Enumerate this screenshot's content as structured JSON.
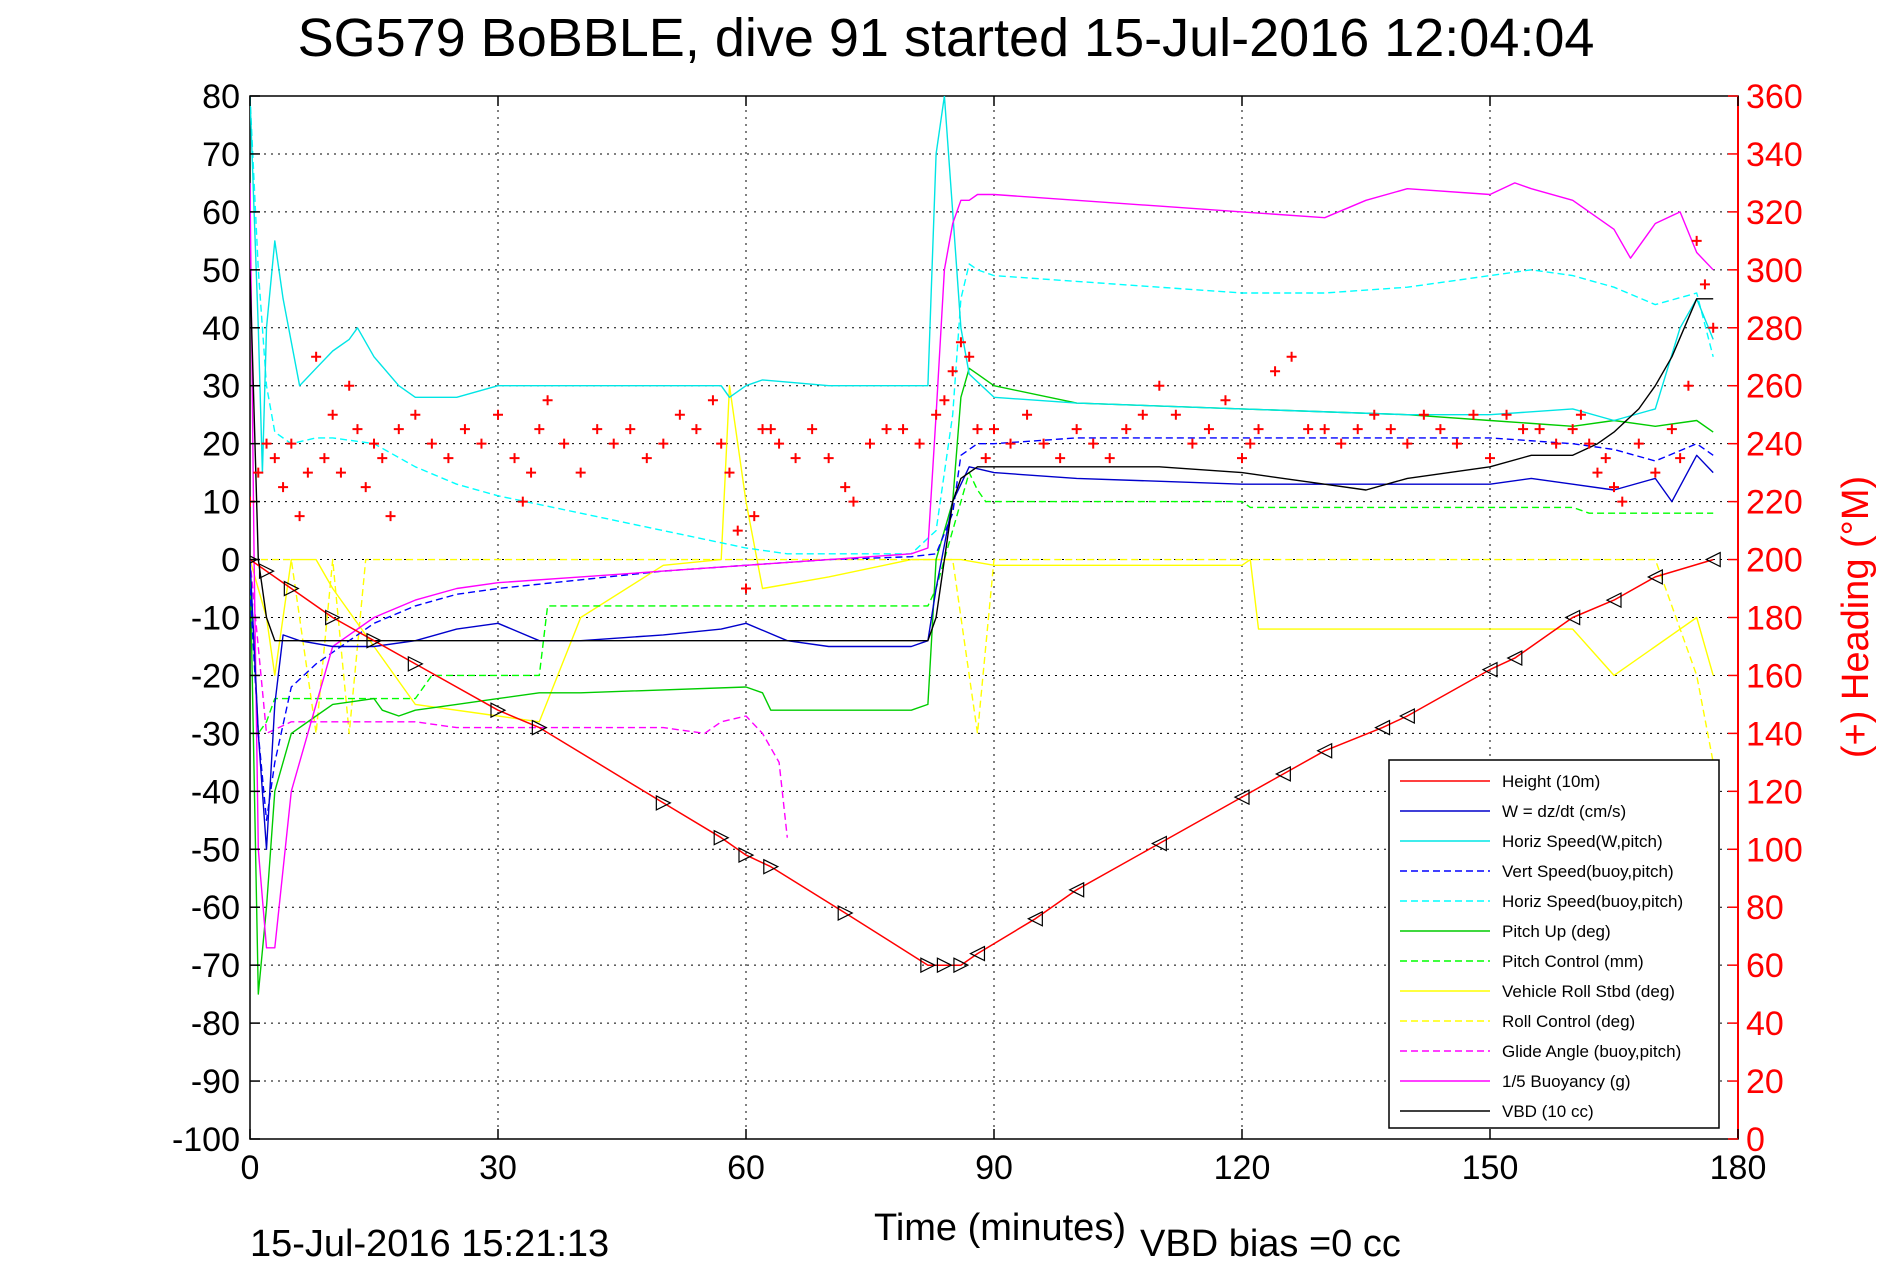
{
  "chart_data": {
    "type": "line",
    "title": "SG579 BoBBLE, dive 91 started 15-Jul-2016 12:04:04",
    "xlabel": "Time (minutes)",
    "ylabel_right": "(+) Heading (°M)",
    "xlim": [
      0,
      180
    ],
    "ylim": [
      -100,
      80
    ],
    "ylim_right": [
      0,
      360
    ],
    "x_ticks": [
      "0",
      "30",
      "60",
      "90",
      "120",
      "150",
      "180"
    ],
    "y_ticks": [
      "80",
      "70",
      "60",
      "50",
      "40",
      "30",
      "20",
      "10",
      "0",
      "-10",
      "-20",
      "-30",
      "-40",
      "-50",
      "-60",
      "-70",
      "-80",
      "-90",
      "-100"
    ],
    "y_ticks_right": [
      "360",
      "340",
      "320",
      "300",
      "280",
      "260",
      "240",
      "220",
      "200",
      "180",
      "160",
      "140",
      "120",
      "100",
      "80",
      "60",
      "40",
      "20",
      "0"
    ],
    "grid": true,
    "legend_position": "bottom-right",
    "footer_left": "15-Jul-2016 15:21:13",
    "footer_right": "VBD bias =0 cc",
    "colors": {
      "height": "#ff0000",
      "w": "#0000cc",
      "horiz_speed_w": "#00e5e5",
      "vert_speed_buoy": "#0000ff",
      "horiz_speed_buoy": "#00ffff",
      "pitch_up": "#00cc00",
      "pitch_control": "#00ff00",
      "roll": "#ffff00",
      "roll_control": "#ffff00",
      "glide_angle": "#ff00ff",
      "buoyancy": "#ff00ff",
      "vbd": "#000000",
      "heading": "#ff0000"
    },
    "series": [
      {
        "key": "height",
        "name": "Height (10m)",
        "style": "solid",
        "axis": "left",
        "x": [
          0,
          2,
          5,
          10,
          15,
          20,
          30,
          35,
          50,
          57,
          60,
          63,
          72,
          82,
          84,
          86,
          88,
          95,
          100,
          110,
          120,
          125,
          130,
          137,
          140,
          150,
          153,
          160,
          165,
          170,
          177
        ],
        "y": [
          0,
          -2,
          -5,
          -10,
          -14,
          -18,
          -26,
          -29,
          -42,
          -48,
          -51,
          -53,
          -61,
          -70,
          -70,
          -70,
          -68,
          -62,
          -57,
          -49,
          -41,
          -37,
          -33,
          -29,
          -27,
          -19,
          -17,
          -10,
          -7,
          -3,
          0
        ]
      },
      {
        "key": "w",
        "name": "W = dz/dt (cm/s)",
        "style": "solid",
        "axis": "left",
        "x": [
          0,
          1,
          2,
          3,
          4,
          6,
          10,
          15,
          20,
          25,
          30,
          35,
          40,
          50,
          57,
          60,
          65,
          70,
          80,
          82,
          83,
          85,
          87,
          90,
          100,
          120,
          130,
          140,
          150,
          155,
          160,
          165,
          170,
          172,
          175,
          177
        ],
        "y": [
          0,
          -30,
          -50,
          -25,
          -13,
          -14,
          -15,
          -15,
          -14,
          -12,
          -11,
          -14,
          -14,
          -13,
          -12,
          -11,
          -14,
          -15,
          -15,
          -14,
          -5,
          10,
          16,
          15,
          14,
          13,
          13,
          13,
          13,
          14,
          13,
          12,
          14,
          10,
          18,
          15
        ]
      },
      {
        "key": "horiz_speed_w",
        "name": "Horiz Speed(W,pitch)",
        "style": "solid",
        "axis": "left",
        "x": [
          0,
          0.5,
          1,
          1.5,
          2,
          3,
          4,
          6,
          8,
          10,
          12,
          13,
          15,
          18,
          20,
          25,
          30,
          40,
          50,
          57,
          58,
          60,
          62,
          70,
          80,
          82,
          83,
          84,
          85,
          86,
          87,
          90,
          100,
          120,
          140,
          150,
          160,
          165,
          170,
          173,
          175,
          177
        ],
        "y": [
          80,
          60,
          40,
          15,
          40,
          55,
          45,
          30,
          33,
          36,
          38,
          40,
          35,
          30,
          28,
          28,
          30,
          30,
          30,
          30,
          28,
          30,
          31,
          30,
          30,
          30,
          70,
          80,
          60,
          40,
          32,
          28,
          27,
          26,
          25,
          25,
          26,
          24,
          26,
          40,
          45,
          38
        ]
      },
      {
        "key": "vert_speed_buoy",
        "name": "Vert Speed(buoy,pitch)",
        "style": "dashed",
        "axis": "left",
        "x": [
          0,
          1,
          2,
          3,
          5,
          8,
          10,
          15,
          20,
          25,
          30,
          40,
          50,
          60,
          70,
          80,
          83,
          85,
          86,
          88,
          90,
          100,
          120,
          140,
          150,
          160,
          165,
          170,
          175,
          177
        ],
        "y": [
          -5,
          -30,
          -45,
          -35,
          -22,
          -18,
          -16,
          -11,
          -8,
          -6,
          -5,
          -3.5,
          -2,
          -1,
          0,
          0.5,
          1,
          8,
          18,
          20,
          20,
          21,
          21,
          21,
          21,
          20,
          19,
          17,
          20,
          18
        ]
      },
      {
        "key": "horiz_speed_buoy",
        "name": "Horiz Speed(buoy,pitch)",
        "style": "dashed",
        "axis": "left",
        "x": [
          0,
          1,
          2,
          3,
          5,
          8,
          10,
          15,
          20,
          25,
          30,
          40,
          50,
          60,
          65,
          70,
          80,
          83,
          85,
          86,
          87,
          88,
          90,
          100,
          110,
          120,
          130,
          140,
          150,
          155,
          160,
          165,
          170,
          175,
          177
        ],
        "y": [
          80,
          50,
          30,
          22,
          20,
          21,
          21,
          20,
          16,
          13,
          11,
          8,
          5,
          2,
          1,
          1,
          1,
          5,
          25,
          45,
          51,
          50,
          49,
          48,
          47,
          46,
          46,
          47,
          49,
          50,
          49,
          47,
          44,
          46,
          35
        ]
      },
      {
        "key": "pitch_up",
        "name": "Pitch Up (deg)",
        "style": "solid",
        "axis": "left",
        "x": [
          0,
          1,
          2,
          3,
          5,
          8,
          10,
          15,
          16,
          18,
          20,
          25,
          30,
          35,
          40,
          60,
          62,
          63,
          80,
          82,
          83,
          85,
          86,
          87,
          88,
          90,
          100,
          120,
          140,
          150,
          160,
          165,
          170,
          175,
          177
        ],
        "y": [
          0,
          -75,
          -60,
          -40,
          -30,
          -27,
          -25,
          -24,
          -26,
          -27,
          -26,
          -25,
          -24,
          -23,
          -23,
          -22,
          -23,
          -26,
          -26,
          -25,
          0,
          10,
          28,
          33,
          32,
          30,
          27,
          26,
          25,
          24,
          23,
          24,
          23,
          24,
          22
        ]
      },
      {
        "key": "pitch_control",
        "name": "Pitch Control (mm)",
        "style": "dashed",
        "axis": "left",
        "x": [
          0,
          1,
          2,
          3,
          20,
          22,
          35,
          36,
          82,
          83,
          87,
          88,
          89,
          120,
          121,
          160,
          162,
          177
        ],
        "y": [
          0,
          -30,
          -28,
          -24,
          -24,
          -20,
          -20,
          -8,
          -8,
          -5,
          15,
          12,
          10,
          10,
          9,
          9,
          8,
          8
        ]
      },
      {
        "key": "roll",
        "name": "Vehicle Roll Stbd (deg)",
        "style": "solid",
        "axis": "left",
        "x": [
          0,
          2,
          3,
          5,
          8,
          10,
          15,
          20,
          30,
          35,
          40,
          50,
          57,
          58,
          60,
          62,
          70,
          80,
          84,
          86,
          90,
          100,
          120,
          121,
          122,
          130,
          140,
          150,
          160,
          165,
          170,
          175,
          177
        ],
        "y": [
          0,
          -10,
          -20,
          0,
          0,
          -5,
          -15,
          -25,
          -27,
          -28,
          -10,
          -1,
          0,
          30,
          10,
          -5,
          -3,
          0,
          0,
          0,
          -1,
          -1,
          -1,
          0,
          -12,
          -12,
          -12,
          -12,
          -12,
          -20,
          -15,
          -10,
          -20
        ]
      },
      {
        "key": "roll_control",
        "name": "Roll Control (deg)",
        "style": "dashed",
        "axis": "left",
        "x": [
          0,
          5,
          8,
          10,
          12,
          14,
          20,
          30,
          40,
          50,
          60,
          70,
          80,
          85,
          88,
          90,
          100,
          120,
          140,
          150,
          160,
          165,
          170,
          175,
          177
        ],
        "y": [
          0,
          0,
          -30,
          0,
          -30,
          0,
          0,
          0,
          0,
          0,
          0,
          0,
          0,
          0,
          -30,
          0,
          0,
          0,
          0,
          0,
          0,
          0,
          0,
          -20,
          -35
        ]
      },
      {
        "key": "glide_angle",
        "name": "Glide Angle (buoy,pitch)",
        "style": "dashed",
        "axis": "left",
        "x": [
          0,
          2,
          5,
          10,
          15,
          20,
          25,
          30,
          40,
          50,
          55,
          57,
          60,
          62,
          64,
          65
        ],
        "y": [
          0,
          -30,
          -28,
          -28,
          -28,
          -28,
          -29,
          -29,
          -29,
          -29,
          -30,
          -28,
          -27,
          -30,
          -35,
          -48
        ]
      },
      {
        "key": "buoyancy",
        "name": "1/5 Buoyancy (g)",
        "style": "solid",
        "axis": "left",
        "x": [
          0,
          0.5,
          1,
          2,
          3,
          5,
          8,
          10,
          15,
          20,
          25,
          30,
          40,
          50,
          60,
          70,
          80,
          82,
          83,
          84,
          85,
          86,
          87,
          88,
          90,
          100,
          110,
          120,
          130,
          135,
          140,
          150,
          153,
          155,
          160,
          165,
          167,
          170,
          173,
          175,
          177
        ],
        "y": [
          65,
          0,
          -50,
          -67,
          -67,
          -40,
          -25,
          -15,
          -10,
          -7,
          -5,
          -4,
          -3,
          -2,
          -1,
          0,
          1,
          2,
          25,
          50,
          58,
          62,
          62,
          63,
          63,
          62,
          61,
          60,
          59,
          62,
          64,
          63,
          65,
          64,
          62,
          57,
          52,
          58,
          60,
          53,
          50
        ]
      },
      {
        "key": "vbd",
        "name": "VBD (10 cc)",
        "style": "solid",
        "axis": "left",
        "x": [
          0,
          1,
          2,
          3,
          82,
          83,
          84,
          85,
          86,
          87,
          88,
          89,
          100,
          110,
          120,
          125,
          130,
          135,
          140,
          150,
          155,
          160,
          163,
          165,
          168,
          170,
          172,
          175,
          177
        ],
        "y": [
          50,
          0,
          -10,
          -14,
          -14,
          -10,
          0,
          10,
          14,
          15,
          16,
          16,
          16,
          16,
          15,
          14,
          13,
          12,
          14,
          16,
          18,
          18,
          20,
          22,
          26,
          30,
          35,
          45,
          45
        ]
      },
      {
        "key": "heading",
        "name": "",
        "style": "markers",
        "axis": "right",
        "x": [
          0,
          1,
          2,
          3,
          4,
          5,
          6,
          7,
          8,
          9,
          10,
          11,
          12,
          13,
          14,
          15,
          16,
          17,
          18,
          20,
          22,
          24,
          26,
          28,
          30,
          32,
          33,
          34,
          35,
          36,
          38,
          40,
          42,
          44,
          46,
          48,
          50,
          52,
          54,
          56,
          57,
          58,
          59,
          60,
          61,
          62,
          63,
          64,
          66,
          68,
          70,
          72,
          73,
          75,
          77,
          79,
          81,
          83,
          84,
          85,
          86,
          87,
          88,
          89,
          90,
          92,
          94,
          96,
          98,
          100,
          102,
          104,
          106,
          108,
          110,
          112,
          114,
          116,
          118,
          120,
          121,
          122,
          124,
          126,
          128,
          130,
          132,
          134,
          136,
          138,
          140,
          142,
          144,
          146,
          148,
          150,
          152,
          154,
          156,
          158,
          160,
          161,
          162,
          163,
          164,
          165,
          166,
          168,
          170,
          172,
          173,
          174,
          175,
          176,
          177
        ],
        "y": [
          220,
          230,
          240,
          235,
          225,
          240,
          215,
          230,
          270,
          235,
          250,
          230,
          260,
          245,
          225,
          240,
          235,
          215,
          245,
          250,
          240,
          235,
          245,
          240,
          250,
          235,
          220,
          230,
          245,
          255,
          240,
          230,
          245,
          240,
          245,
          235,
          240,
          250,
          245,
          255,
          240,
          230,
          210,
          190,
          215,
          245,
          245,
          240,
          235,
          245,
          235,
          225,
          220,
          240,
          245,
          245,
          240,
          250,
          255,
          265,
          275,
          270,
          245,
          235,
          245,
          240,
          250,
          240,
          235,
          245,
          240,
          235,
          245,
          250,
          260,
          250,
          240,
          245,
          255,
          235,
          240,
          245,
          265,
          270,
          245,
          245,
          240,
          245,
          250,
          245,
          240,
          250,
          245,
          240,
          250,
          235,
          250,
          245,
          245,
          240,
          245,
          250,
          240,
          230,
          235,
          225,
          220,
          240,
          230,
          245,
          235,
          260,
          310,
          295,
          280
        ]
      }
    ]
  }
}
